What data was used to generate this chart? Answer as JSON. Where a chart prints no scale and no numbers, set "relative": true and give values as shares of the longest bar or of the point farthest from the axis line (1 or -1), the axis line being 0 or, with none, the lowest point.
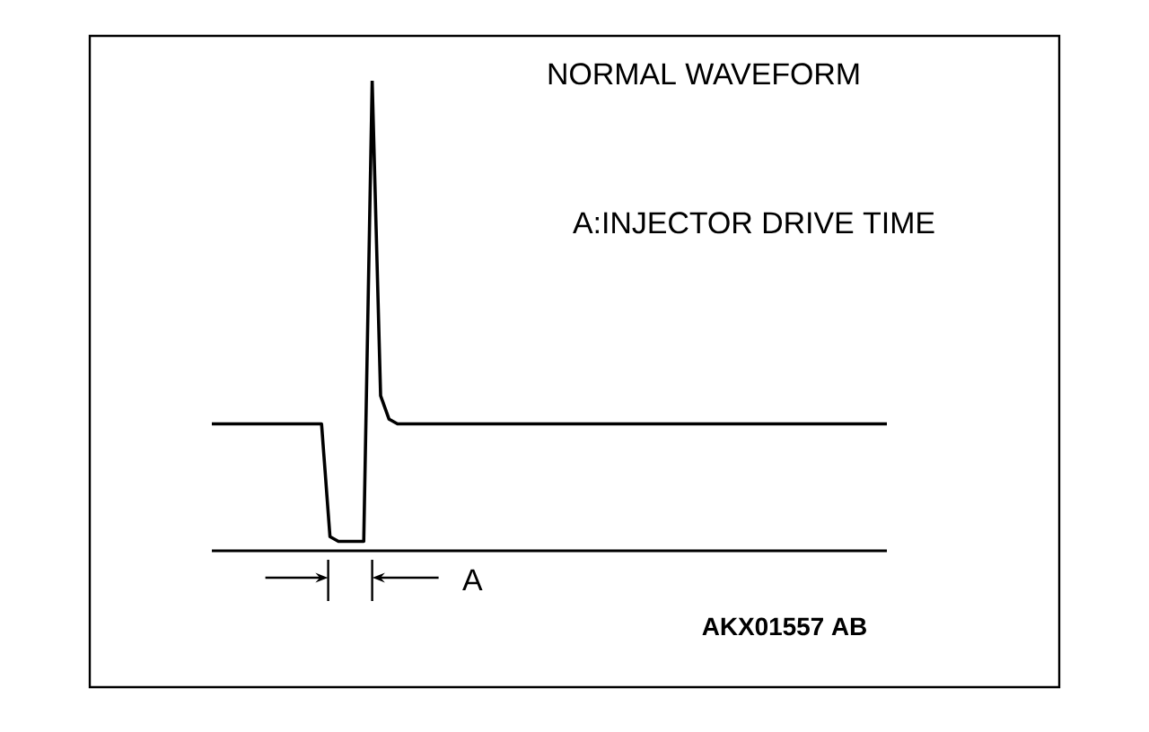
{
  "chart_data": {
    "type": "line",
    "relative": true,
    "title": "NORMAL  WAVEFORM",
    "color": "#000000",
    "categories": [
      null,
      null,
      null,
      null,
      null,
      null,
      null,
      null,
      null,
      null,
      null,
      null,
      null,
      null,
      null,
      null,
      null,
      null,
      null,
      null,
      null,
      null,
      null,
      null,
      null,
      null,
      null,
      null,
      null,
      null,
      null,
      null,
      null,
      null,
      null,
      null,
      null,
      null,
      null,
      null,
      null,
      null,
      null,
      null,
      null,
      null,
      null,
      null,
      null,
      null,
      null,
      null,
      null,
      null,
      null,
      null,
      null,
      null,
      null,
      null,
      null,
      null,
      null,
      null,
      null,
      null,
      null,
      null,
      null,
      null,
      null,
      null,
      null,
      null,
      null,
      null,
      null,
      null,
      null,
      null,
      null
    ],
    "values": [
      0.27,
      0.27,
      0.27,
      0.27,
      0.27,
      0.27,
      0.27,
      0.27,
      0.27,
      0.27,
      0.27,
      0.27,
      0.27,
      0.27,
      0.03,
      0.02,
      0.02,
      0.02,
      0.02,
      1.0,
      0.33,
      0.28,
      0.27,
      0.27,
      0.27,
      0.27,
      0.27,
      0.27,
      0.27,
      0.27,
      0.27,
      0.27,
      0.27,
      0.27,
      0.27,
      0.27,
      0.27,
      0.27,
      0.27,
      0.27,
      0.27,
      0.27,
      0.27,
      0.27,
      0.27,
      0.27,
      0.27,
      0.27,
      0.27,
      0.27,
      0.27,
      0.27,
      0.27,
      0.27,
      0.27,
      0.27,
      0.27,
      0.27,
      0.27,
      0.27,
      0.27,
      0.27,
      0.27,
      0.27,
      0.27,
      0.27,
      0.27,
      0.27,
      0.27,
      0.27,
      0.27,
      0.27,
      0.27,
      0.27,
      0.27,
      0.27,
      0.27,
      0.27,
      0.27,
      0.27,
      0.27
    ],
    "annotations": [
      "A:INJECTOR DRIVE TIME",
      "A",
      "AKX01557 AB"
    ]
  }
}
